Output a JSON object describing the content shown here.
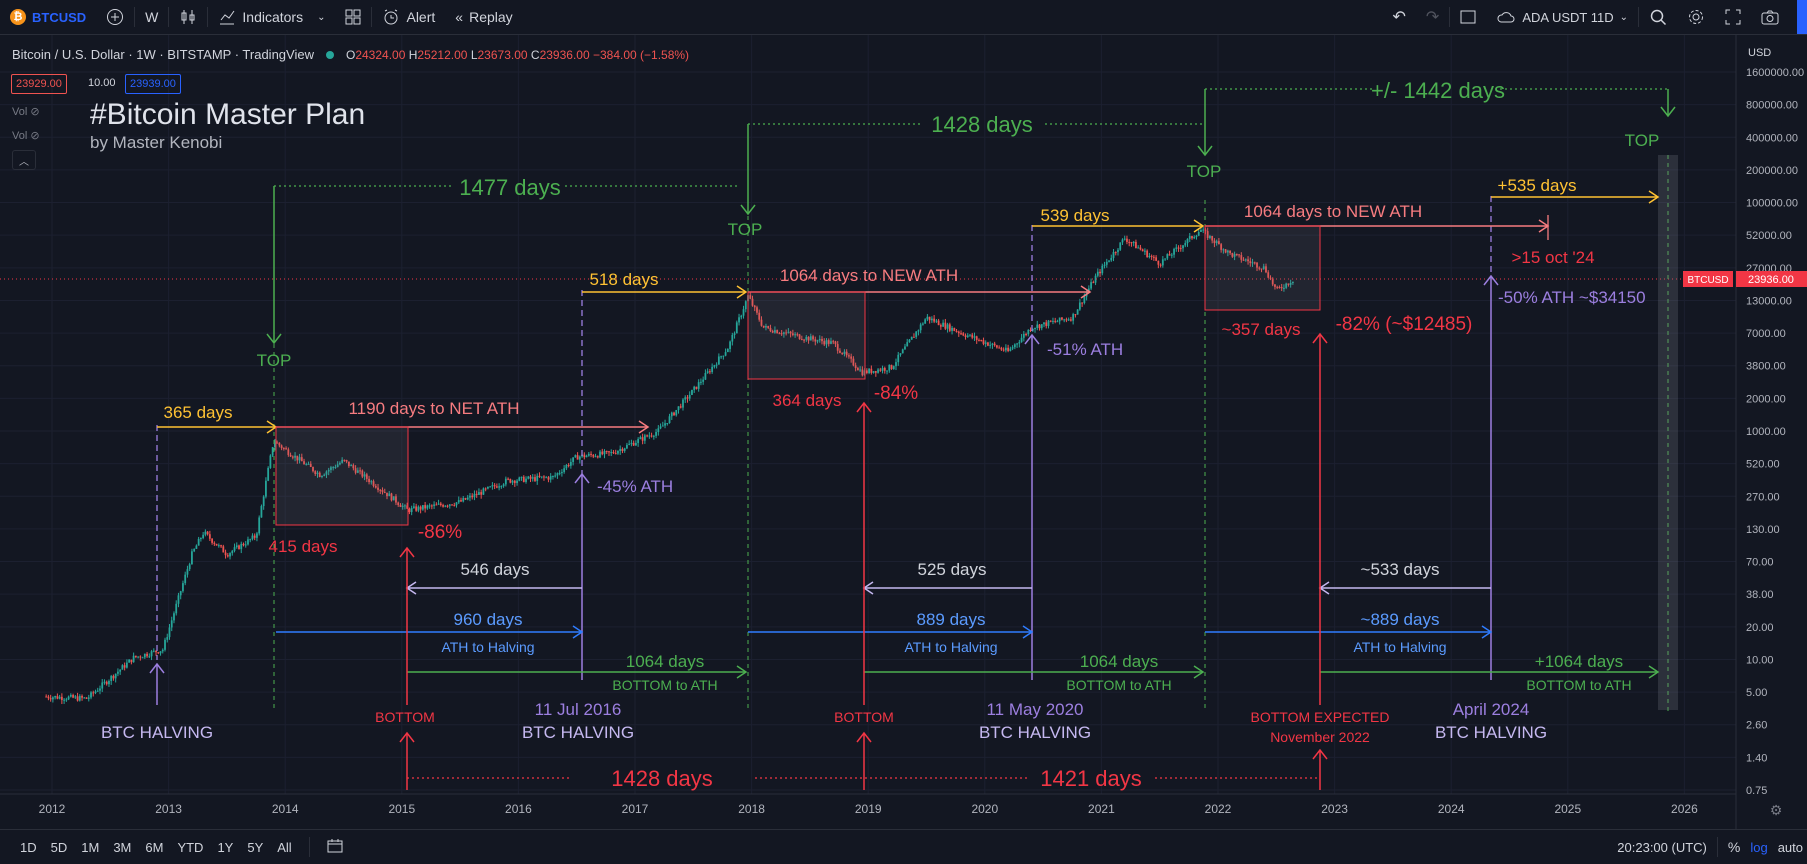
{
  "toolbar": {
    "symbol": "BTCUSD",
    "interval": "W",
    "indicators": "Indicators",
    "alert": "Alert",
    "replay": "Replay",
    "watch_symbol": "ADA USDT 11D"
  },
  "legend": {
    "title": "Bitcoin / U.S. Dollar · 1W · BITSTAMP · TradingView",
    "o_k": "O",
    "o_v": "24324.00",
    "h_k": "H",
    "h_v": "25212.00",
    "l_k": "L",
    "l_v": "23673.00",
    "c_k": "C",
    "c_v": "23936.00",
    "change": "−384.00 (−1.58%)",
    "bid": "23929.00",
    "spread": "10.00",
    "ask": "23939.00",
    "vol1": "Vol",
    "vol2": "Vol"
  },
  "price_axis": {
    "currency": "USD",
    "ticks": [
      "1600000.00",
      "800000.00",
      "400000.00",
      "200000.00",
      "100000.00",
      "52000.00",
      "27000.00",
      "13000.00",
      "7000.00",
      "3800.00",
      "2000.00",
      "1000.00",
      "520.00",
      "270.00",
      "130.00",
      "70.00",
      "38.00",
      "20.00",
      "10.00",
      "5.00",
      "2.60",
      "1.40",
      "0.75"
    ],
    "tag_symbol": "BTCUSD",
    "tag_price": "23936.00"
  },
  "time_axis": [
    "2012",
    "2013",
    "2014",
    "2015",
    "2016",
    "2017",
    "2018",
    "2019",
    "2020",
    "2021",
    "2022",
    "2023",
    "2024",
    "2025",
    "2026"
  ],
  "annotations": {
    "title": "#Bitcoin Master Plan",
    "subtitle": "by Master Kenobi",
    "a1477": "1477 days",
    "a1428top": "1428 days",
    "a1442": "+/- 1442 days",
    "top": "TOP",
    "d365": "365 days",
    "d518": "518 days",
    "d539": "539 days",
    "d535": "+535 days",
    "ath1190": "1190 days to NET ATH",
    "ath1064a": "1064 days to NEW ATH",
    "ath1064b": "1064 days to NEW ATH",
    "oct24": ">15 oct '24",
    "d415": "415 days",
    "p86": "-86%",
    "d364": "364 days",
    "p84": "-84%",
    "d357": "~357 days",
    "p82": "-82% (~$12485)",
    "ath45": "-45% ATH",
    "ath51": "-51% ATH",
    "ath50": "-50% ATH ~$34150",
    "d546": "546 days",
    "d525": "525 days",
    "d533": "~533 days",
    "d960": "960 days",
    "d889": "889 days",
    "d889b": "~889 days",
    "ath_to_halving": "ATH to Halving",
    "d1064": "1064 days",
    "d1064p": "+1064 days",
    "bottom_to_ath": "BOTTOM to ATH",
    "bottom": "BOTTOM",
    "bottom_expected": "BOTTOM EXPECTED",
    "nov2022": "November 2022",
    "btc_halving": "BTC HALVING",
    "jul2016": "11 Jul 2016",
    "may2020": "11 May 2020",
    "apr2024": "April 2024",
    "b1428": "1428 days",
    "b1421": "1421 days"
  },
  "bottom_bar": {
    "ranges": [
      "1D",
      "5D",
      "1M",
      "3M",
      "6M",
      "YTD",
      "1Y",
      "5Y",
      "All"
    ],
    "time": "20:23:00 (UTC)",
    "pct": "%",
    "log": "log",
    "auto": "auto"
  },
  "colors": {
    "bg": "#131722",
    "green": "#4caf50",
    "yellow": "#ffc233",
    "red": "#f23645",
    "purple": "#9c7fe0",
    "blue": "#2f7dff",
    "candle_up": "#26a69a",
    "candle_down": "#ef5350"
  }
}
